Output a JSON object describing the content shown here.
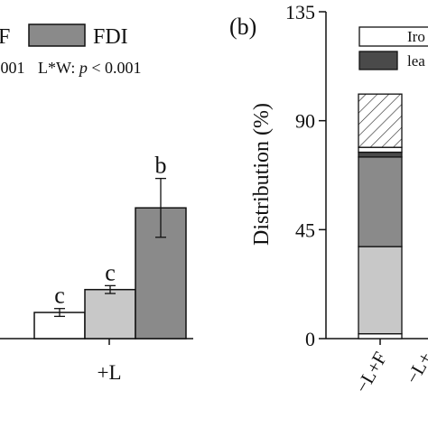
{
  "chart_data": [
    {
      "type": "bar",
      "visible_legend": [
        {
          "label": "F",
          "color": "#ffffff"
        },
        {
          "label": "FDI",
          "color": "#8a8a8a"
        }
      ],
      "stats_left": ".001",
      "stats_right_prefix": "L*W: ",
      "stats_right_p": "p",
      "stats_right_suffix": " < 0.001",
      "bars": [
        {
          "value": 0.08,
          "err": 0.012,
          "color": "#ffffff",
          "letter": "c"
        },
        {
          "value": 0.15,
          "err": 0.012,
          "color": "#c8c8c8",
          "letter": "c"
        },
        {
          "value": 0.4,
          "err": 0.09,
          "color": "#8a8a8a",
          "letter": "b"
        }
      ],
      "group_label": "+L",
      "ylim": [
        0,
        1
      ]
    },
    {
      "type": "bar",
      "panel_label": "(b)",
      "ylabel": "Distribution (%)",
      "yticks": [
        "0",
        "45",
        "90",
        "135"
      ],
      "ylim": [
        0,
        135
      ],
      "legend": [
        {
          "label": "Iro",
          "color": "#ffffff"
        },
        {
          "label": "lea",
          "color": "#4a4a4a"
        }
      ],
      "categories": [
        "−L+F",
        "−L+"
      ],
      "stacked_segments": [
        {
          "from": 0,
          "to": 2,
          "color": "#ffffff",
          "pattern": "none"
        },
        {
          "from": 2,
          "to": 38,
          "color": "#c8c8c8",
          "pattern": "none"
        },
        {
          "from": 38,
          "to": 75,
          "color": "#8a8a8a",
          "pattern": "none"
        },
        {
          "from": 75,
          "to": 77,
          "color": "#4a4a4a",
          "pattern": "none"
        },
        {
          "from": 77,
          "to": 79,
          "color": "#ffffff",
          "pattern": "none"
        },
        {
          "from": 79,
          "to": 101,
          "color": "#ffffff",
          "pattern": "hatch"
        }
      ]
    }
  ]
}
